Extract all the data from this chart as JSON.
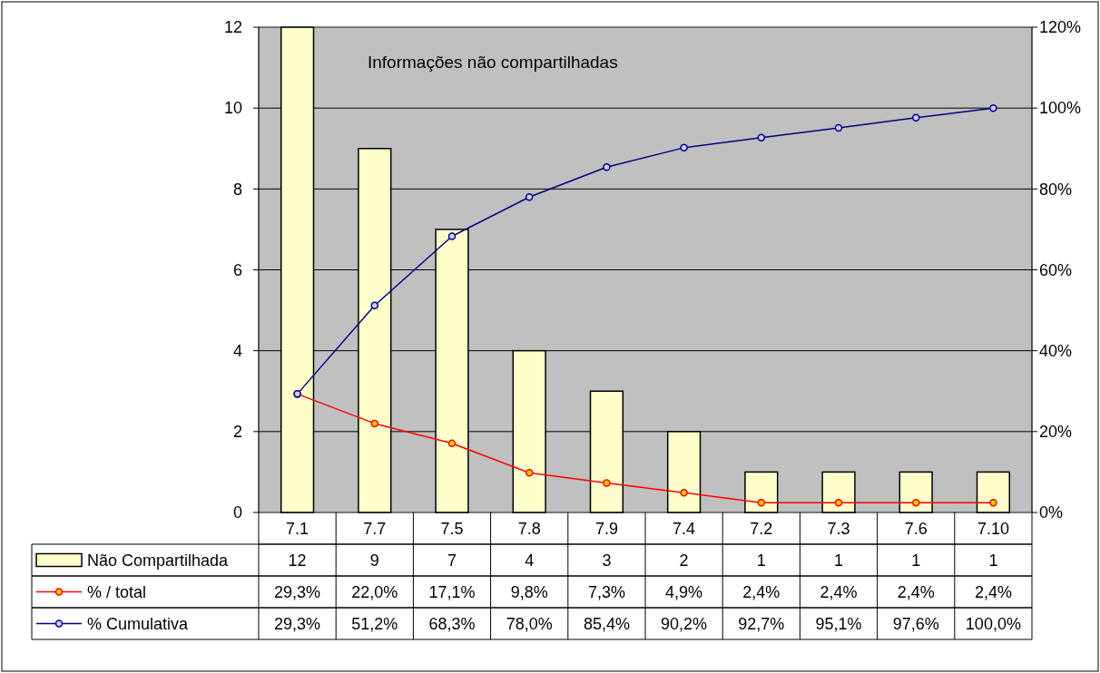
{
  "chart_data": {
    "type": "bar",
    "title": "Informações não compartilhadas",
    "categories": [
      "7.1",
      "7.7",
      "7.5",
      "7.8",
      "7.9",
      "7.4",
      "7.2",
      "7.3",
      "7.6",
      "7.10"
    ],
    "series": [
      {
        "name": "Não Compartilhada",
        "color": "#ffffcc",
        "values": [
          12,
          9,
          7,
          4,
          3,
          2,
          1,
          1,
          1,
          1
        ],
        "value_labels": [
          "12",
          "9",
          "7",
          "4",
          "3",
          "2",
          "1",
          "1",
          "1",
          "1"
        ]
      },
      {
        "name": "% / total",
        "type": "line",
        "axis": "y2",
        "color": "#ff0000",
        "values": [
          29.3,
          22.0,
          17.1,
          9.8,
          7.3,
          4.9,
          2.4,
          2.4,
          2.4,
          2.4
        ],
        "value_labels": [
          "29,3%",
          "22,0%",
          "17,1%",
          "9,8%",
          "7,3%",
          "4,9%",
          "2,4%",
          "2,4%",
          "2,4%",
          "2,4%"
        ]
      },
      {
        "name": "% Cumulativa",
        "type": "line",
        "axis": "y2",
        "color": "#000080",
        "values": [
          29.3,
          51.2,
          68.3,
          78.0,
          85.4,
          90.2,
          92.7,
          95.1,
          97.6,
          100.0
        ],
        "value_labels": [
          "29,3%",
          "51,2%",
          "68,3%",
          "78,0%",
          "85,4%",
          "90,2%",
          "92,7%",
          "95,1%",
          "97,6%",
          "100,0%"
        ]
      }
    ],
    "ylim": [
      0,
      12
    ],
    "yticks": [
      0,
      2,
      4,
      6,
      8,
      10,
      12
    ],
    "y2lim": [
      0,
      120
    ],
    "y2ticks": [
      {
        "value": 0,
        "label": "0%"
      },
      {
        "value": 20,
        "label": "20%"
      },
      {
        "value": 40,
        "label": "40%"
      },
      {
        "value": 60,
        "label": "60%"
      },
      {
        "value": 80,
        "label": "80%"
      },
      {
        "value": 100,
        "label": "100%"
      },
      {
        "value": 120,
        "label": "120%"
      }
    ],
    "grid": "y",
    "marker": "circle",
    "line_style": "solid",
    "legend": "bottom"
  }
}
